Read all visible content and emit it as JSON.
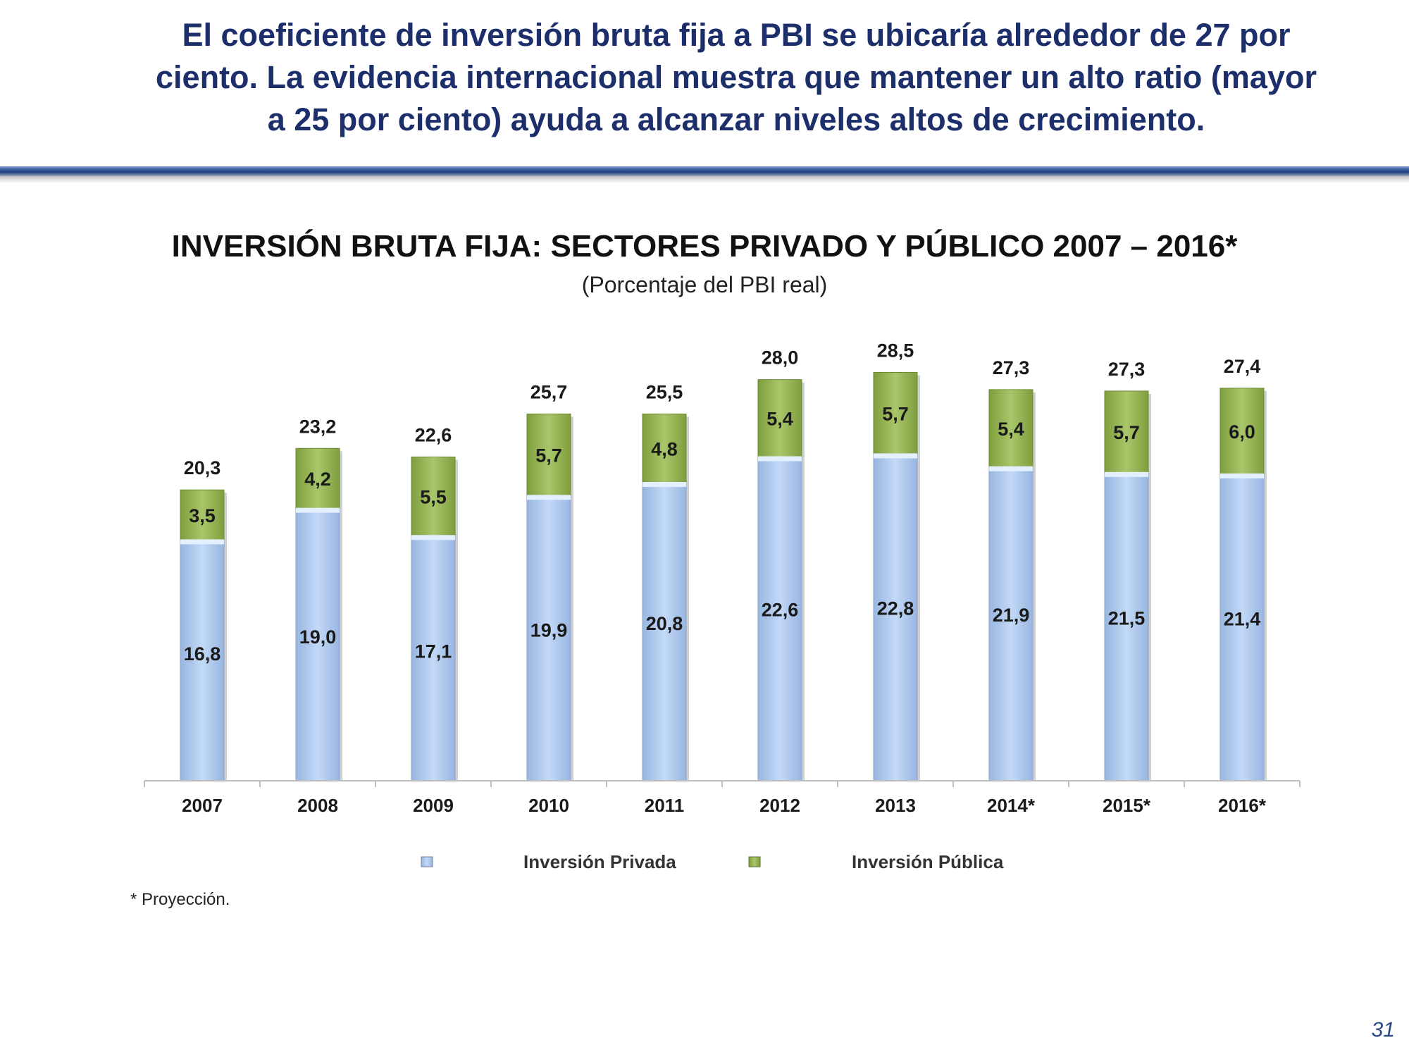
{
  "slide": {
    "headline_lines": [
      "El coeficiente de inversión bruta fija a PBI se ubicaría alrededor de 27 por",
      "ciento. La evidencia internacional muestra que mantener un alto ratio (mayor",
      "a 25 por ciento) ayuda a alcanzar niveles altos de crecimiento."
    ],
    "footnote": "* Proyección.",
    "page_number": "31"
  },
  "chart_data": {
    "type": "bar",
    "stacked": true,
    "title": "INVERSIÓN BRUTA FIJA: SECTORES PRIVADO Y PÚBLICO 2007 – 2016*",
    "subtitle": "(Porcentaje del PBI real)",
    "categories": [
      "2007",
      "2008",
      "2009",
      "2010",
      "2011",
      "2012",
      "2013",
      "2014*",
      "2015*",
      "2016*"
    ],
    "series": [
      {
        "name": "Inversión Privada",
        "color": "#aecbf2",
        "values": [
          16.8,
          19.0,
          17.1,
          19.9,
          20.8,
          22.6,
          22.8,
          21.9,
          21.5,
          21.4
        ],
        "labels": [
          "16,8",
          "19,0",
          "17,1",
          "19,9",
          "20,8",
          "22,6",
          "22,8",
          "21,9",
          "21,5",
          "21,4"
        ]
      },
      {
        "name": "Inversión Pública",
        "color": "#9bbb59",
        "values": [
          3.5,
          4.2,
          5.5,
          5.7,
          4.8,
          5.4,
          5.7,
          5.4,
          5.7,
          6.0
        ],
        "labels": [
          "3,5",
          "4,2",
          "5,5",
          "5,7",
          "4,8",
          "5,4",
          "5,7",
          "5,4",
          "5,7",
          "6,0"
        ]
      }
    ],
    "totals": [
      20.3,
      23.2,
      22.6,
      25.7,
      25.5,
      28.0,
      28.5,
      27.3,
      27.3,
      27.4
    ],
    "total_labels": [
      "20,3",
      "23,2",
      "22,6",
      "25,7",
      "25,5",
      "28,0",
      "28,5",
      "27,3",
      "27,3",
      "27,4"
    ],
    "ylim": [
      0,
      30
    ],
    "grid": false,
    "legend_position": "bottom"
  }
}
